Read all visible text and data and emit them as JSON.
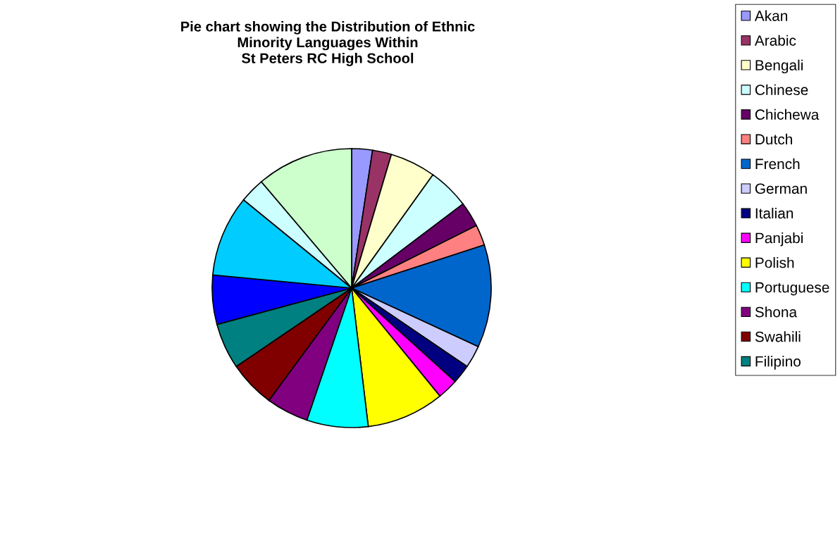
{
  "chart_data": {
    "type": "pie",
    "title": "Pie chart showing the Distribution of Ethnic\nMinority Languages Within\nSt Peters RC High School",
    "categories": [
      "Akan",
      "Arabic",
      "Bengali",
      "Chinese",
      "Chichewa",
      "Dutch",
      "French",
      "German",
      "Italian",
      "Panjabi",
      "Polish",
      "Portuguese",
      "Shona",
      "Swahili",
      "Filipino",
      null,
      null,
      null,
      null
    ],
    "values": [
      2.4,
      2.2,
      5.3,
      4.8,
      2.9,
      2.4,
      11.9,
      2.6,
      2.2,
      2.4,
      9.0,
      7.1,
      4.9,
      5.4,
      5.3,
      5.7,
      9.4,
      2.9,
      11.2
    ],
    "colors": [
      "#9999ff",
      "#993366",
      "#ffffcc",
      "#ccffff",
      "#660066",
      "#ff8080",
      "#0066cc",
      "#ccccff",
      "#000080",
      "#ff00ff",
      "#ffff00",
      "#00ffff",
      "#800080",
      "#800000",
      "#008080",
      "#0000ff",
      "#00ccff",
      "#ccffff",
      "#ccffcc"
    ],
    "legend": "right"
  }
}
